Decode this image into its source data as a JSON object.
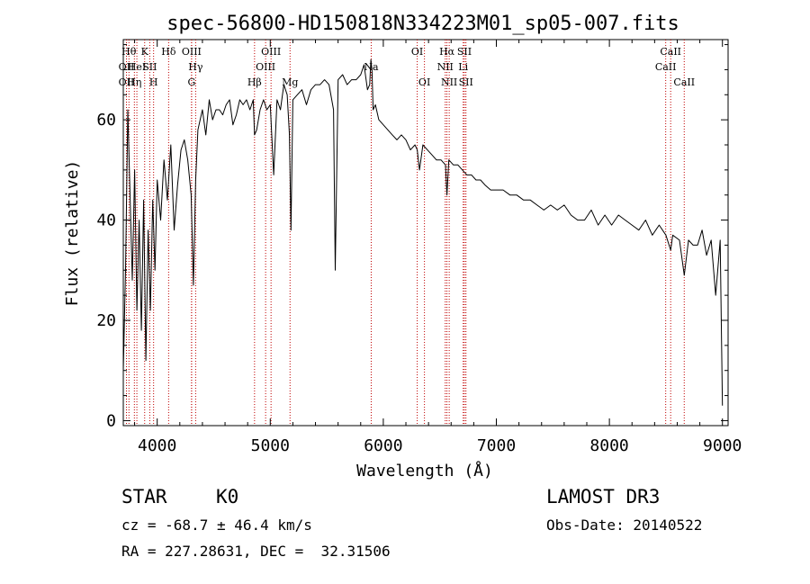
{
  "chart_data": {
    "type": "line",
    "title": "spec-56800-HD150818N334223M01_sp05-007.fits",
    "xlabel": "Wavelength (Å)",
    "ylabel": "Flux (relative)",
    "xlim": [
      3700,
      9050
    ],
    "ylim": [
      -1,
      76
    ],
    "x_ticks": [
      4000,
      5000,
      6000,
      7000,
      8000,
      9000
    ],
    "x_tick_labels": [
      "4000",
      "5000",
      "6000",
      "7000",
      "8000",
      "9000"
    ],
    "y_ticks": [
      0,
      20,
      40,
      60
    ],
    "y_tick_labels": [
      "0",
      "20",
      "40",
      "60"
    ],
    "grid": false,
    "series": [
      {
        "name": "flux",
        "x": [
          3700,
          3720,
          3740,
          3760,
          3780,
          3800,
          3820,
          3840,
          3860,
          3880,
          3900,
          3920,
          3940,
          3960,
          3980,
          4000,
          4030,
          4060,
          4090,
          4120,
          4150,
          4180,
          4210,
          4240,
          4270,
          4300,
          4320,
          4340,
          4360,
          4380,
          4400,
          4430,
          4460,
          4490,
          4520,
          4550,
          4580,
          4610,
          4640,
          4670,
          4700,
          4730,
          4760,
          4790,
          4820,
          4850,
          4861,
          4880,
          4910,
          4940,
          4970,
          5000,
          5030,
          5060,
          5090,
          5120,
          5150,
          5170,
          5183,
          5200,
          5240,
          5280,
          5320,
          5360,
          5400,
          5440,
          5480,
          5520,
          5560,
          5575,
          5600,
          5640,
          5680,
          5720,
          5760,
          5800,
          5830,
          5860,
          5880,
          5890,
          5900,
          5910,
          5930,
          5960,
          6000,
          6040,
          6080,
          6120,
          6160,
          6200,
          6240,
          6280,
          6300,
          6320,
          6350,
          6390,
          6430,
          6470,
          6510,
          6550,
          6563,
          6580,
          6620,
          6660,
          6700,
          6740,
          6780,
          6820,
          6860,
          6900,
          6950,
          7000,
          7060,
          7120,
          7180,
          7240,
          7300,
          7360,
          7420,
          7480,
          7540,
          7600,
          7660,
          7720,
          7780,
          7840,
          7900,
          7960,
          8020,
          8080,
          8140,
          8200,
          8260,
          8320,
          8380,
          8440,
          8500,
          8542,
          8560,
          8620,
          8662,
          8700,
          8740,
          8780,
          8820,
          8860,
          8900,
          8940,
          8980,
          9000
        ],
        "values": [
          10,
          30,
          62,
          45,
          28,
          50,
          22,
          40,
          18,
          44,
          12,
          38,
          22,
          44,
          30,
          48,
          40,
          52,
          44,
          55,
          38,
          47,
          54,
          56,
          52,
          45,
          27,
          48,
          58,
          60,
          62,
          57,
          64,
          60,
          62,
          62,
          61,
          63,
          64,
          59,
          61,
          64,
          63,
          64,
          62,
          64,
          57,
          58,
          62,
          64,
          62,
          63,
          49,
          64,
          62,
          67,
          65,
          57,
          38,
          64,
          65,
          66,
          63,
          66,
          67,
          67,
          68,
          67,
          62,
          30,
          68,
          69,
          67,
          68,
          68,
          69,
          71,
          66,
          67,
          72,
          70,
          62,
          63,
          60,
          59,
          58,
          57,
          56,
          57,
          56,
          54,
          55,
          54,
          50,
          55,
          54,
          53,
          52,
          52,
          51,
          45,
          52,
          51,
          51,
          50,
          49,
          49,
          48,
          48,
          47,
          46,
          46,
          46,
          45,
          45,
          44,
          44,
          43,
          42,
          43,
          42,
          43,
          41,
          40,
          40,
          42,
          39,
          41,
          39,
          41,
          40,
          39,
          38,
          40,
          37,
          39,
          37,
          34,
          37,
          36,
          29,
          36,
          35,
          35,
          38,
          33,
          36,
          25,
          36,
          3
        ]
      }
    ],
    "line_markers": [
      {
        "wavelength": 3728,
        "label": "OII",
        "row": 1
      },
      {
        "wavelength": 3728,
        "label": "OII",
        "row": 2
      },
      {
        "wavelength": 3750,
        "label": "Hθ",
        "row": 0
      },
      {
        "wavelength": 3798,
        "label": "Hη",
        "row": 2
      },
      {
        "wavelength": 3820,
        "label": "HeI",
        "row": 1
      },
      {
        "wavelength": 3889,
        "label": "K",
        "row": 0
      },
      {
        "wavelength": 3934,
        "label": "SII",
        "row": 1
      },
      {
        "wavelength": 3968,
        "label": "H",
        "row": 2
      },
      {
        "wavelength": 4101,
        "label": "Hδ",
        "row": 0
      },
      {
        "wavelength": 4304,
        "label": "OIII",
        "row": 0
      },
      {
        "wavelength": 4304,
        "label": "G",
        "row": 2
      },
      {
        "wavelength": 4340,
        "label": "Hγ",
        "row": 1
      },
      {
        "wavelength": 4861,
        "label": "Hβ",
        "row": 2
      },
      {
        "wavelength": 4959,
        "label": "OIII",
        "row": 1
      },
      {
        "wavelength": 5007,
        "label": "OIII",
        "row": 0
      },
      {
        "wavelength": 5175,
        "label": "Mg",
        "row": 2
      },
      {
        "wavelength": 5893,
        "label": "Na",
        "row": 1
      },
      {
        "wavelength": 6300,
        "label": "OI",
        "row": 0
      },
      {
        "wavelength": 6364,
        "label": "OI",
        "row": 2
      },
      {
        "wavelength": 6548,
        "label": "NII",
        "row": 1
      },
      {
        "wavelength": 6563,
        "label": "Hα",
        "row": 0
      },
      {
        "wavelength": 6583,
        "label": "NII",
        "row": 2
      },
      {
        "wavelength": 6707,
        "label": "Li",
        "row": 1
      },
      {
        "wavelength": 6717,
        "label": "SII",
        "row": 0
      },
      {
        "wavelength": 6731,
        "label": "SII",
        "row": 2
      },
      {
        "wavelength": 8498,
        "label": "CaII",
        "row": 1
      },
      {
        "wavelength": 8542,
        "label": "CaII",
        "row": 0
      },
      {
        "wavelength": 8662,
        "label": "CaII",
        "row": 2
      }
    ],
    "marker_color": "#c00000"
  },
  "info": {
    "class": "STAR",
    "subclass": "K0",
    "survey": "LAMOST DR3",
    "cz_line": "cz = -68.7 ± 46.4 km/s",
    "obs_date_line": "Obs-Date: 20140522",
    "coords_line": "RA = 227.28631, DEC =  32.31506"
  }
}
